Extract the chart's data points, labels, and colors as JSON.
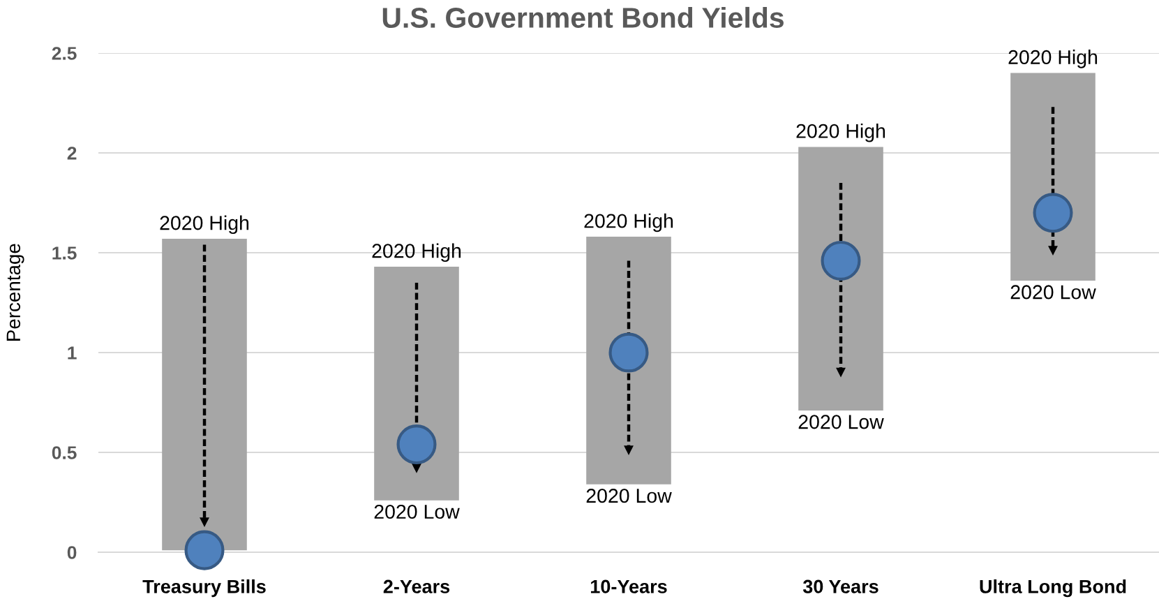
{
  "chart_data": {
    "type": "bar",
    "title": "U.S. Government Bond Yields",
    "ylabel": "Percentage",
    "categories": [
      "Treasury Bills",
      "2-Years",
      "10-Years",
      "30 Years",
      "Ultra Long Bond"
    ],
    "ylim": [
      0,
      2.5
    ],
    "yticks": [
      0,
      0.5,
      1,
      1.5,
      2,
      2.5
    ],
    "grid": "y",
    "series": [
      {
        "color": "#a6a6a6",
        "base": [
          0.01,
          0.26,
          0.34,
          0.71,
          1.36
        ],
        "values": [
          1.56,
          1.17,
          1.24,
          1.32,
          1.04
        ]
      },
      {
        "type": "line",
        "color": "#000000",
        "line_style": "dashed",
        "marker": "triangle",
        "x": [
          "Treasury Bills",
          "Treasury Bills",
          "Treasury Bills",
          "2-Years",
          "2-Years",
          "2-Years",
          "10-Years",
          "10-Years",
          "10-Years",
          "30 Years",
          "30 Years",
          "30 Years",
          "Ultra Long Bond",
          "Ultra Long Bond",
          "Ultra Long Bond"
        ],
        "values": [
          1.54,
          0.15,
          null,
          1.35,
          0.42,
          null,
          1.46,
          0.51,
          null,
          1.85,
          0.9,
          null,
          2.23,
          1.51,
          null
        ]
      },
      {
        "type": "scatter",
        "color": "#4f81bd",
        "marker": "circle",
        "x": [
          "Treasury Bills",
          "2-Years",
          "10-Years",
          "30 Years",
          "Ultra Long Bond"
        ],
        "values": [
          0.01,
          0.54,
          1.0,
          1.46,
          1.7
        ]
      }
    ],
    "annotations": [
      {
        "text": "2020 High",
        "x": "Treasury Bills",
        "y": 1.57
      },
      {
        "text": "2020 High",
        "x": "2-Years",
        "y": 1.43
      },
      {
        "text": "2020 Low",
        "x": "2-Years",
        "y": 0.26
      },
      {
        "text": "2020 High",
        "x": "10-Years",
        "y": 1.58
      },
      {
        "text": "2020 Low",
        "x": "10-Years",
        "y": 0.34
      },
      {
        "text": "2020 High",
        "x": "30 Years",
        "y": 2.03
      },
      {
        "text": "2020 Low",
        "x": "30 Years",
        "y": 0.71
      },
      {
        "text": "2020 High",
        "x": "Ultra Long Bond",
        "y": 2.4
      },
      {
        "text": "2020 Low",
        "x": "Ultra Long Bond",
        "y": 1.36
      }
    ]
  }
}
